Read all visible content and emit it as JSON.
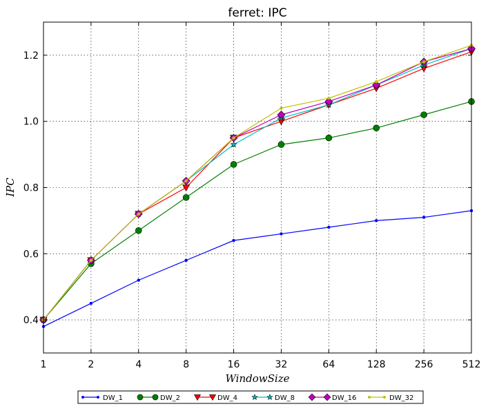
{
  "chart_data": {
    "type": "line",
    "title": "ferret: IPC",
    "xlabel": "WindowSize",
    "ylabel": "IPC",
    "x": [
      "1",
      "2",
      "4",
      "8",
      "16",
      "32",
      "64",
      "128",
      "256",
      "512"
    ],
    "ylim": [
      0.3,
      1.3
    ],
    "yticks": [
      "0.4",
      "0.6",
      "0.8",
      "1.0",
      "1.2"
    ],
    "grid": true,
    "legend_position": "bottom",
    "series": [
      {
        "name": "DW_1",
        "color": "#0000ff",
        "marker": "dot",
        "values": [
          0.38,
          0.45,
          0.52,
          0.58,
          0.64,
          0.66,
          0.68,
          0.7,
          0.71,
          0.73
        ]
      },
      {
        "name": "DW_2",
        "color": "#007f00",
        "marker": "circle",
        "values": [
          0.4,
          0.57,
          0.67,
          0.77,
          0.87,
          0.93,
          0.95,
          0.98,
          1.02,
          1.06
        ]
      },
      {
        "name": "DW_4",
        "color": "#ff0000",
        "marker": "triangle-down",
        "values": [
          0.4,
          0.58,
          0.72,
          0.8,
          0.95,
          1.0,
          1.05,
          1.1,
          1.16,
          1.21
        ]
      },
      {
        "name": "DW_8",
        "color": "#00bfbf",
        "marker": "star",
        "values": [
          0.4,
          0.58,
          0.72,
          0.82,
          0.93,
          1.01,
          1.05,
          1.11,
          1.17,
          1.22
        ]
      },
      {
        "name": "DW_16",
        "color": "#bf00bf",
        "marker": "diamond",
        "values": [
          0.4,
          0.58,
          0.72,
          0.82,
          0.95,
          1.02,
          1.06,
          1.11,
          1.18,
          1.22
        ]
      },
      {
        "name": "DW_32",
        "color": "#bfbf00",
        "marker": "dot",
        "values": [
          0.4,
          0.58,
          0.72,
          0.82,
          0.95,
          1.04,
          1.07,
          1.12,
          1.18,
          1.23
        ]
      }
    ]
  }
}
